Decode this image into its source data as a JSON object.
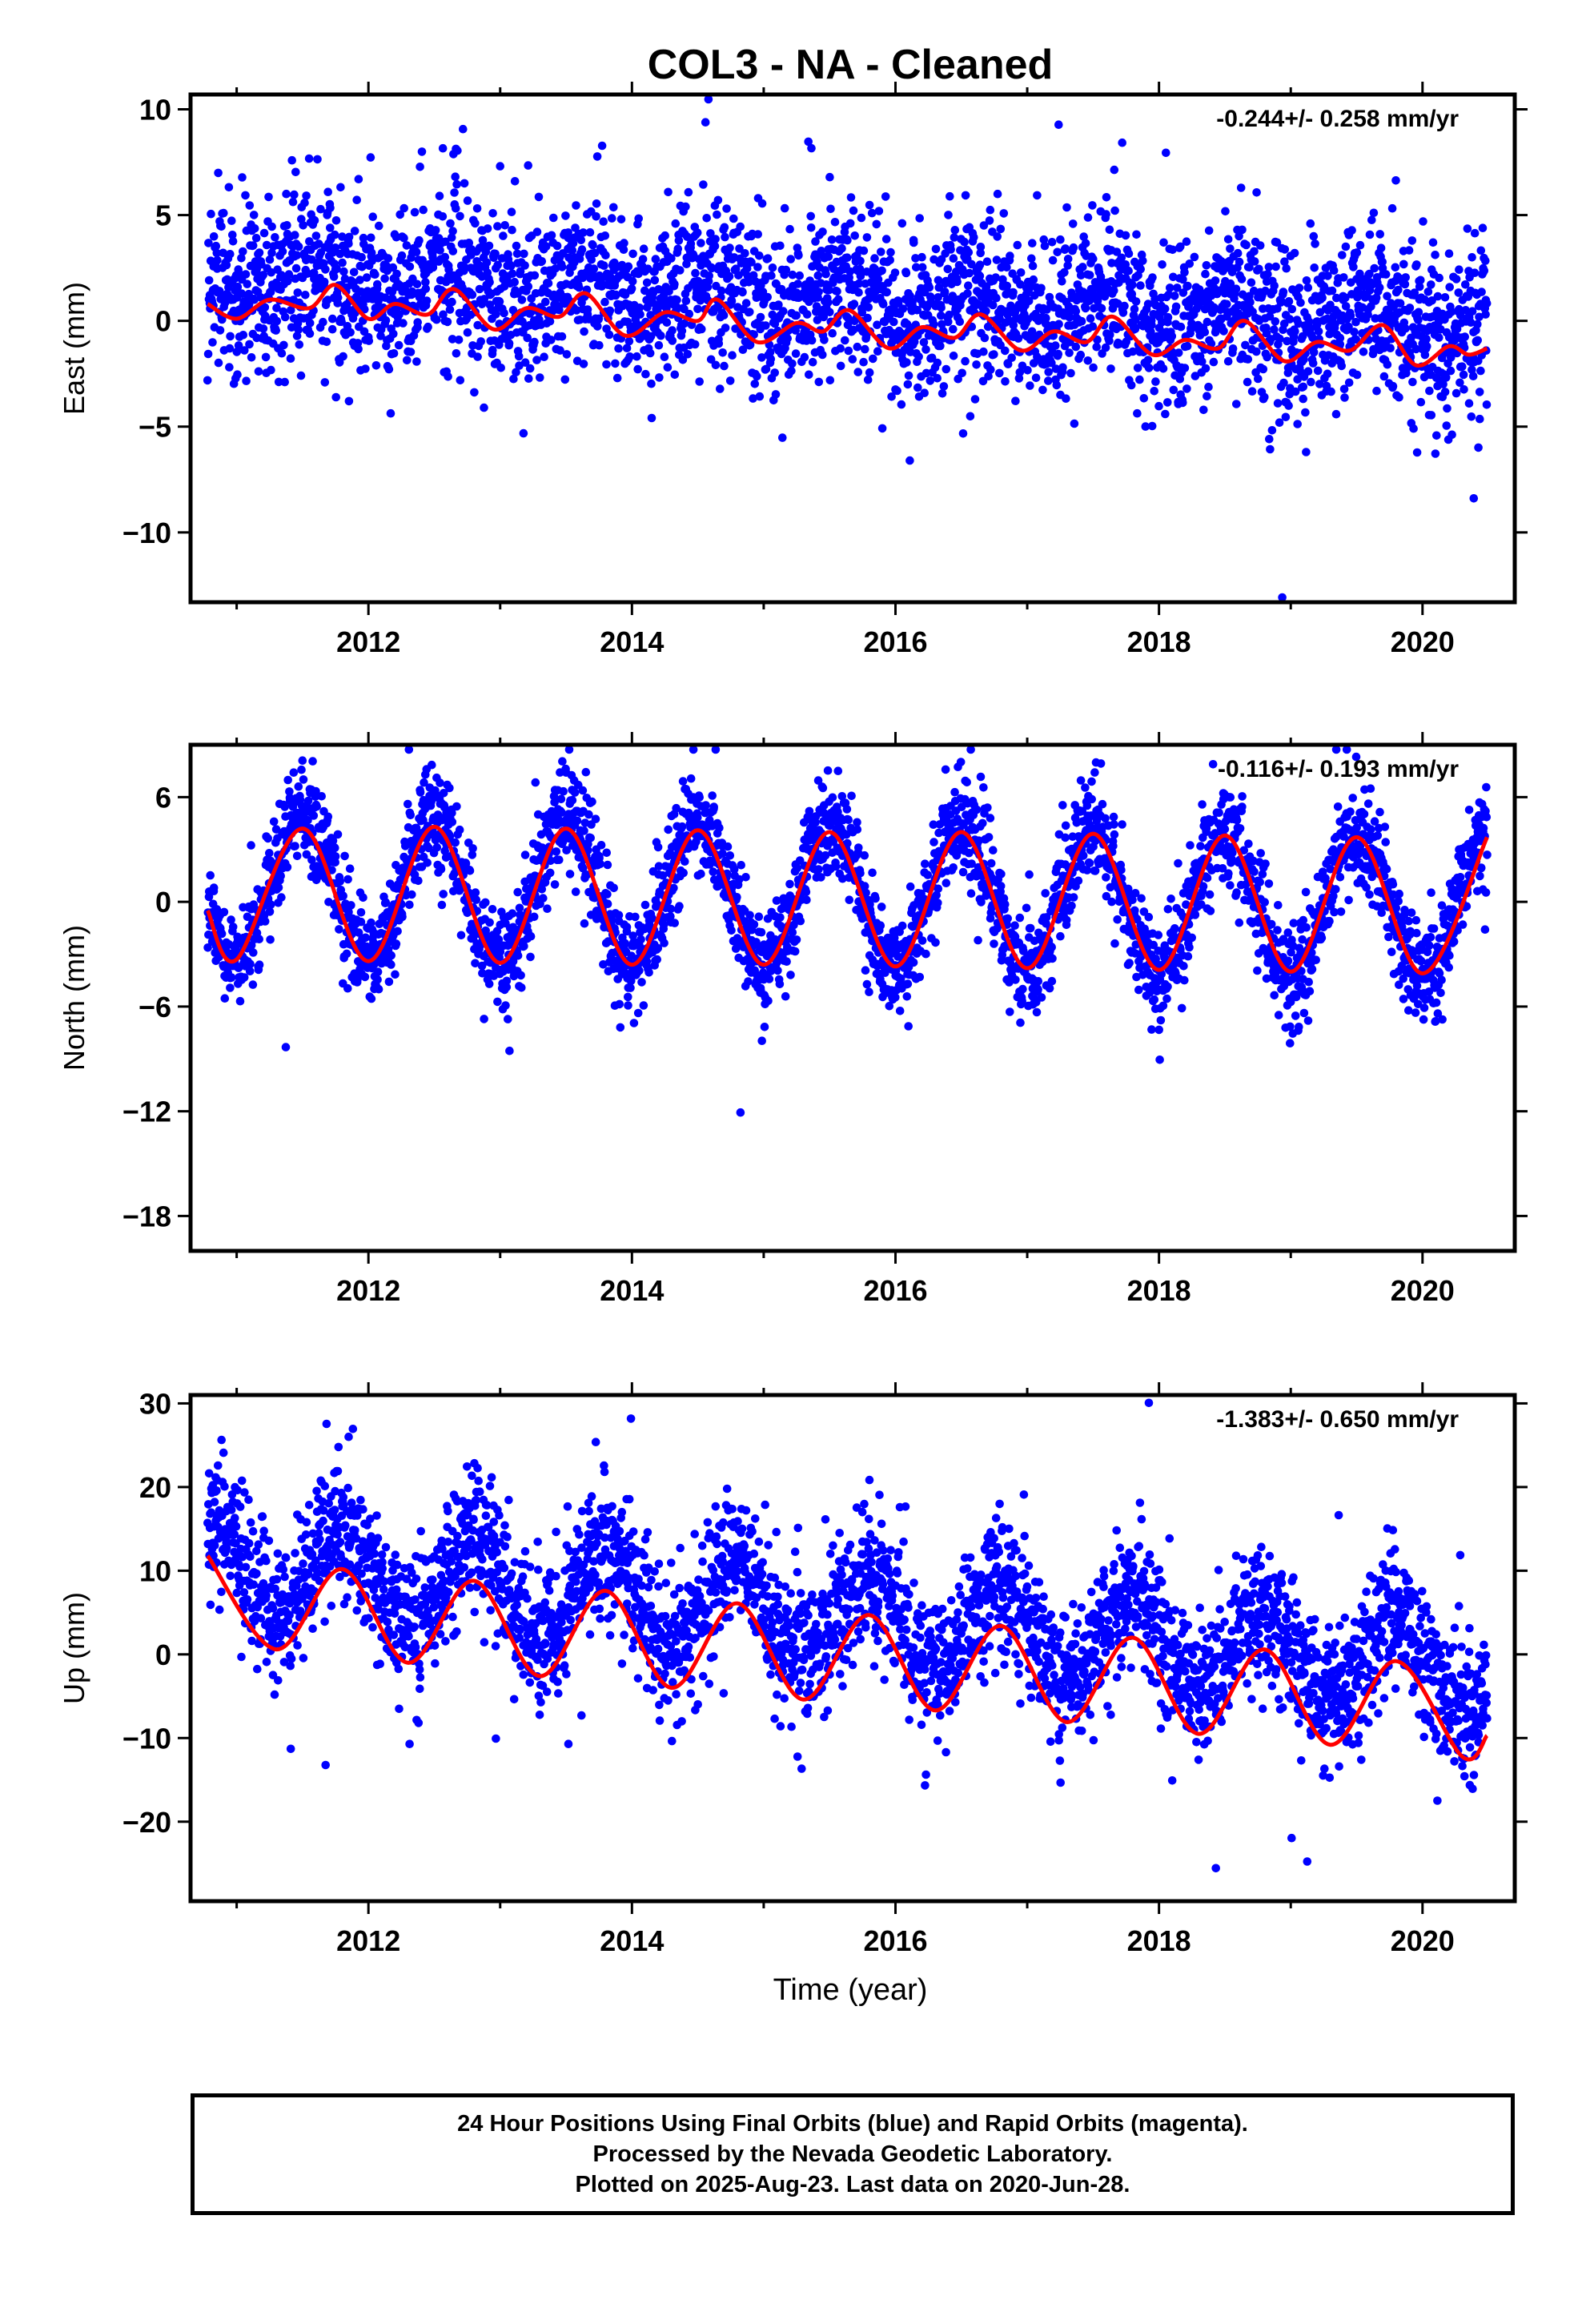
{
  "title": "COL3  - NA - Cleaned",
  "x_axis_label": "Time (year)",
  "footer": {
    "line1": "24 Hour Positions Using Final Orbits (blue) and Rapid Orbits (magenta).",
    "line2": "Processed by the Nevada Geodetic Laboratory.",
    "line3": "Plotted on 2025-Aug-23. Last data on 2020-Jun-28."
  },
  "colors": {
    "points": "#0000ff",
    "model": "#ff0000",
    "frame": "#000000"
  },
  "chart_data": [
    {
      "type": "scatter",
      "ylabel": "East (mm)",
      "rate_text": "-0.244+/- 0.258 mm/yr",
      "xlim": [
        2010.65,
        2020.7
      ],
      "ylim": [
        -13.3,
        10.7
      ],
      "xticks": [
        2012,
        2014,
        2016,
        2018,
        2020
      ],
      "yticks": [
        -10,
        -5,
        0,
        5,
        10
      ],
      "series": [
        {
          "kind": "points",
          "time_range": [
            2010.78,
            2020.49
          ],
          "trend_mm_per_yr": -0.244,
          "offset_mm": 0.9,
          "annual_amplitude_mm": 0.8,
          "scatter_sd_mm": 1.9,
          "phase_year": 2011.6
        },
        {
          "kind": "model",
          "points": [
            [
              2010.78,
              0.8
            ],
            [
              2011.0,
              0.1
            ],
            [
              2011.25,
              1.0
            ],
            [
              2011.55,
              0.6
            ],
            [
              2011.75,
              1.7
            ],
            [
              2012.0,
              0.1
            ],
            [
              2012.2,
              0.8
            ],
            [
              2012.45,
              0.3
            ],
            [
              2012.65,
              1.5
            ],
            [
              2012.95,
              -0.4
            ],
            [
              2013.2,
              0.6
            ],
            [
              2013.45,
              0.2
            ],
            [
              2013.65,
              1.3
            ],
            [
              2013.95,
              -0.7
            ],
            [
              2014.25,
              0.4
            ],
            [
              2014.5,
              0.0
            ],
            [
              2014.65,
              1.0
            ],
            [
              2014.95,
              -1.0
            ],
            [
              2015.25,
              -0.1
            ],
            [
              2015.45,
              -0.5
            ],
            [
              2015.65,
              0.5
            ],
            [
              2015.95,
              -1.3
            ],
            [
              2016.2,
              -0.3
            ],
            [
              2016.45,
              -0.8
            ],
            [
              2016.65,
              0.3
            ],
            [
              2016.95,
              -1.4
            ],
            [
              2017.2,
              -0.5
            ],
            [
              2017.45,
              -1.0
            ],
            [
              2017.65,
              0.2
            ],
            [
              2017.95,
              -1.6
            ],
            [
              2018.2,
              -0.9
            ],
            [
              2018.45,
              -1.3
            ],
            [
              2018.65,
              0.0
            ],
            [
              2018.95,
              -1.9
            ],
            [
              2019.2,
              -1.0
            ],
            [
              2019.45,
              -1.4
            ],
            [
              2019.7,
              -0.2
            ],
            [
              2019.95,
              -2.1
            ],
            [
              2020.2,
              -1.2
            ],
            [
              2020.35,
              -1.6
            ],
            [
              2020.49,
              -1.3
            ]
          ]
        }
      ]
    },
    {
      "type": "scatter",
      "ylabel": "North (mm)",
      "rate_text": "-0.116+/- 0.193 mm/yr",
      "xlim": [
        2010.65,
        2020.7
      ],
      "ylim": [
        -20.0,
        9.0
      ],
      "xticks": [
        2012,
        2014,
        2016,
        2018,
        2020
      ],
      "yticks": [
        -18,
        -12,
        -6,
        0,
        6
      ],
      "series": [
        {
          "kind": "points",
          "time_range": [
            2010.78,
            2020.49
          ],
          "trend_mm_per_yr": -0.116,
          "offset_mm": 0.4,
          "annual_amplitude_mm": 4.1,
          "scatter_sd_mm": 1.4,
          "phase_year": 2011.5
        },
        {
          "kind": "model",
          "points": [
            [
              2010.78,
              -0.5
            ],
            [
              2011.0,
              -3.3
            ],
            [
              2011.5,
              4.2
            ],
            [
              2012.0,
              -3.4
            ],
            [
              2012.5,
              4.3
            ],
            [
              2013.0,
              -3.5
            ],
            [
              2013.5,
              4.2
            ],
            [
              2014.0,
              -3.6
            ],
            [
              2014.5,
              4.1
            ],
            [
              2015.0,
              -3.6
            ],
            [
              2015.5,
              4.0
            ],
            [
              2016.0,
              -3.7
            ],
            [
              2016.5,
              4.0
            ],
            [
              2017.0,
              -3.8
            ],
            [
              2017.5,
              3.9
            ],
            [
              2018.0,
              -3.9
            ],
            [
              2018.5,
              3.8
            ],
            [
              2019.0,
              -4.0
            ],
            [
              2019.5,
              3.7
            ],
            [
              2020.0,
              -4.1
            ],
            [
              2020.49,
              3.7
            ]
          ]
        }
      ]
    },
    {
      "type": "scatter",
      "ylabel": "Up (mm)",
      "rate_text": "-1.383+/- 0.650 mm/yr",
      "xlim": [
        2010.65,
        2020.7
      ],
      "ylim": [
        -29.5,
        31.0
      ],
      "xticks": [
        2012,
        2014,
        2016,
        2018,
        2020
      ],
      "yticks": [
        -20,
        -10,
        0,
        10,
        20,
        30
      ],
      "series": [
        {
          "kind": "points",
          "time_range": [
            2010.78,
            2020.49
          ],
          "trend_mm_per_yr": -1.383,
          "offset_mm": 4.5,
          "annual_amplitude_mm": 5.3,
          "scatter_sd_mm": 4.0,
          "phase_year": 2011.8
        },
        {
          "kind": "model",
          "points": [
            [
              2010.78,
              11.8
            ],
            [
              2011.3,
              0.6
            ],
            [
              2011.8,
              10.2
            ],
            [
              2012.3,
              -1.0
            ],
            [
              2012.8,
              8.8
            ],
            [
              2013.3,
              -2.6
            ],
            [
              2013.8,
              7.6
            ],
            [
              2014.3,
              -4.0
            ],
            [
              2014.8,
              6.1
            ],
            [
              2015.3,
              -5.4
            ],
            [
              2015.8,
              4.7
            ],
            [
              2016.3,
              -6.7
            ],
            [
              2016.8,
              3.4
            ],
            [
              2017.3,
              -8.1
            ],
            [
              2017.8,
              2.0
            ],
            [
              2018.3,
              -9.5
            ],
            [
              2018.8,
              0.6
            ],
            [
              2019.3,
              -10.8
            ],
            [
              2019.8,
              -0.8
            ],
            [
              2020.3,
              -12.2
            ],
            [
              2020.49,
              -9.7
            ]
          ]
        }
      ]
    }
  ]
}
